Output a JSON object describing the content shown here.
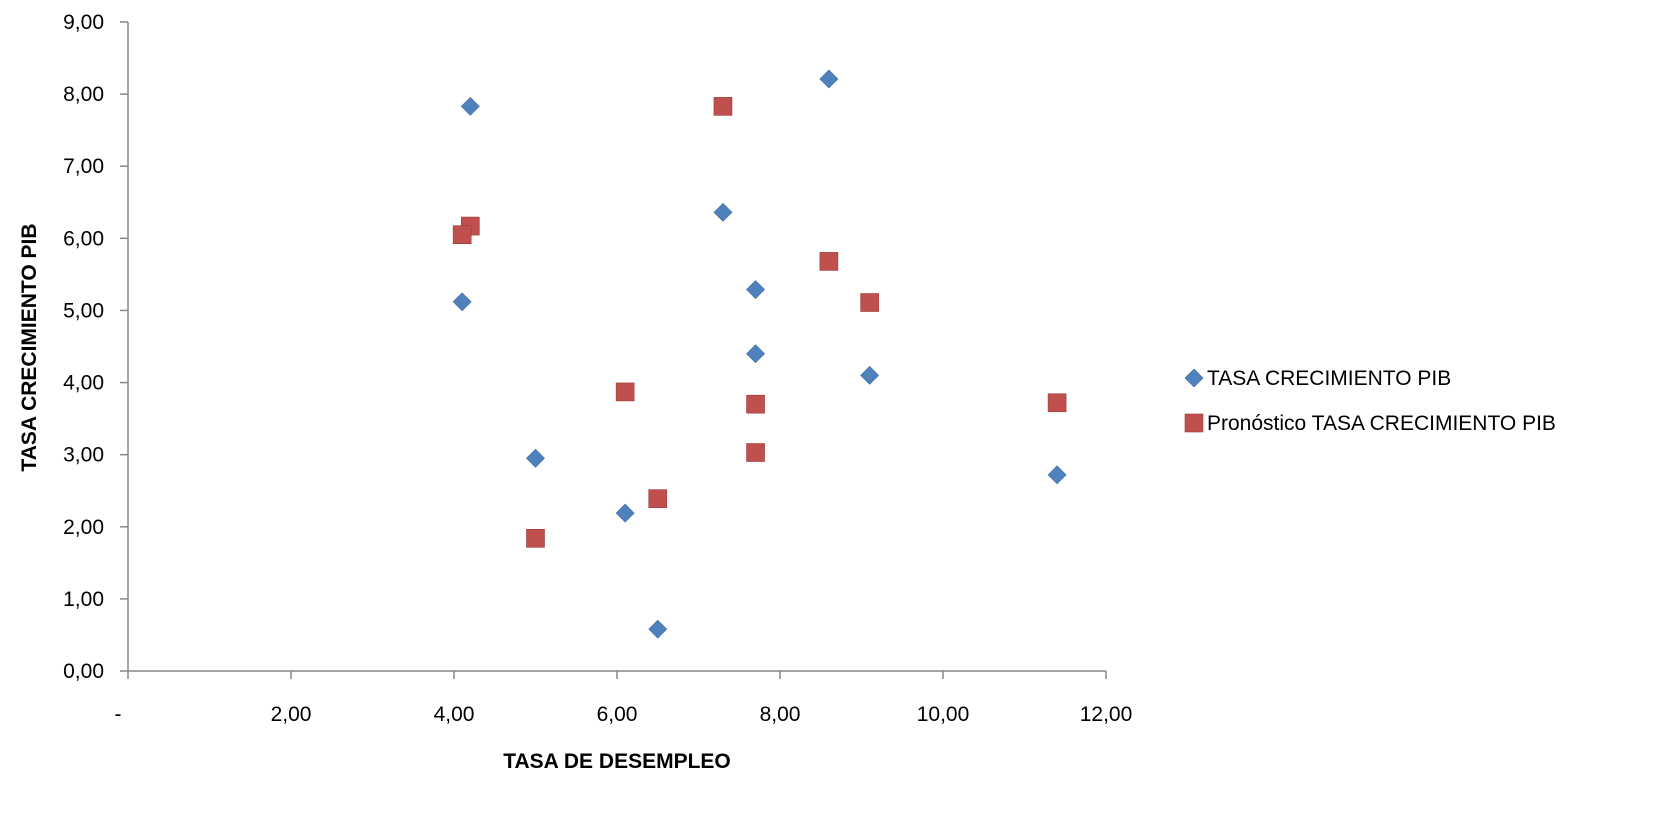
{
  "chart_data": {
    "type": "scatter",
    "title": "",
    "xlabel": "TASA DE DESEMPLEO",
    "ylabel": "TASA CRECIMIENTO PIB",
    "xlim": [
      0,
      12
    ],
    "ylim": [
      0,
      9
    ],
    "x_ticks": [
      0,
      2,
      4,
      6,
      8,
      10,
      12
    ],
    "x_tick_labels": [
      "-",
      "2,00",
      "4,00",
      "6,00",
      "8,00",
      "10,00",
      "12,00"
    ],
    "y_ticks": [
      0,
      1,
      2,
      3,
      4,
      5,
      6,
      7,
      8,
      9
    ],
    "y_tick_labels": [
      "0,00",
      "1,00",
      "2,00",
      "3,00",
      "4,00",
      "5,00",
      "6,00",
      "7,00",
      "8,00",
      "9,00"
    ],
    "grid": false,
    "legend_position": "right",
    "series": [
      {
        "name": "TASA CRECIMIENTO PIB",
        "marker": "diamond",
        "color": "#4f81bd",
        "points": [
          {
            "x": 4.2,
            "y": 7.83
          },
          {
            "x": 8.6,
            "y": 8.21
          },
          {
            "x": 7.3,
            "y": 6.36
          },
          {
            "x": 4.1,
            "y": 5.12
          },
          {
            "x": 7.7,
            "y": 5.29
          },
          {
            "x": 7.7,
            "y": 4.4
          },
          {
            "x": 9.1,
            "y": 4.1
          },
          {
            "x": 5.0,
            "y": 2.95
          },
          {
            "x": 11.4,
            "y": 2.72
          },
          {
            "x": 6.1,
            "y": 2.19
          },
          {
            "x": 6.5,
            "y": 0.58
          }
        ]
      },
      {
        "name": "Pronóstico TASA CRECIMIENTO PIB",
        "marker": "square",
        "color": "#c0504d",
        "points": [
          {
            "x": 7.3,
            "y": 7.83
          },
          {
            "x": 4.2,
            "y": 6.17
          },
          {
            "x": 4.1,
            "y": 6.05
          },
          {
            "x": 8.6,
            "y": 5.68
          },
          {
            "x": 9.1,
            "y": 5.11
          },
          {
            "x": 6.1,
            "y": 3.87
          },
          {
            "x": 11.4,
            "y": 3.72
          },
          {
            "x": 7.7,
            "y": 3.7
          },
          {
            "x": 7.7,
            "y": 3.03
          },
          {
            "x": 6.5,
            "y": 2.39
          },
          {
            "x": 5.0,
            "y": 1.84
          }
        ]
      }
    ]
  }
}
